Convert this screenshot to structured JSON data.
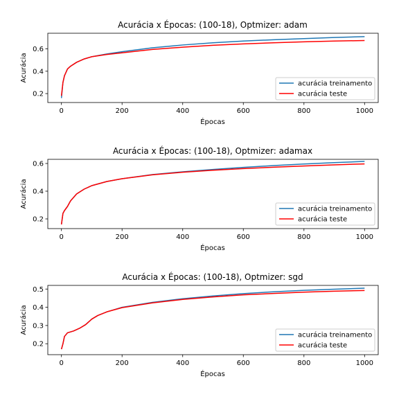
{
  "chart_data": [
    {
      "type": "line",
      "title": "Acurácia x Épocas: (100-18), Optmizer: adam",
      "xlabel": "Épocas",
      "ylabel": "Acurácia",
      "xlim": [
        -45,
        1045
      ],
      "ylim": [
        0.12,
        0.74
      ],
      "xticks": [
        0,
        200,
        400,
        600,
        800,
        1000
      ],
      "yticks": [
        0.2,
        0.4,
        0.6
      ],
      "ytick_labels": [
        "0.2",
        "0.4",
        "0.6"
      ],
      "legend": "lower-right",
      "x": [
        0,
        5,
        10,
        20,
        30,
        50,
        75,
        100,
        150,
        200,
        300,
        400,
        500,
        600,
        700,
        800,
        900,
        1000
      ],
      "series": [
        {
          "name": "acurácia treinamento",
          "color": "#1f77b4",
          "values": [
            0.16,
            0.3,
            0.36,
            0.42,
            0.445,
            0.48,
            0.51,
            0.53,
            0.555,
            0.575,
            0.61,
            0.635,
            0.655,
            0.67,
            0.682,
            0.692,
            0.702,
            0.71
          ]
        },
        {
          "name": "acurácia teste",
          "color": "#ff0000",
          "values": [
            0.18,
            0.3,
            0.36,
            0.42,
            0.445,
            0.48,
            0.51,
            0.53,
            0.55,
            0.565,
            0.595,
            0.615,
            0.632,
            0.645,
            0.655,
            0.663,
            0.67,
            0.675
          ]
        }
      ]
    },
    {
      "type": "line",
      "title": "Acurácia x Épocas: (100-18), Optmizer: adamax",
      "xlabel": "Épocas",
      "ylabel": "Acurácia",
      "xlim": [
        -45,
        1045
      ],
      "ylim": [
        0.13,
        0.63
      ],
      "xticks": [
        0,
        200,
        400,
        600,
        800,
        1000
      ],
      "yticks": [
        0.2,
        0.4,
        0.6
      ],
      "ytick_labels": [
        "0.2",
        "0.4",
        "0.6"
      ],
      "legend": "lower-right",
      "x": [
        0,
        5,
        10,
        20,
        30,
        50,
        75,
        100,
        150,
        200,
        300,
        400,
        500,
        600,
        700,
        800,
        900,
        1000
      ],
      "series": [
        {
          "name": "acurácia treinamento",
          "color": "#1f77b4",
          "values": [
            0.16,
            0.24,
            0.26,
            0.29,
            0.33,
            0.38,
            0.415,
            0.44,
            0.47,
            0.49,
            0.52,
            0.54,
            0.557,
            0.572,
            0.585,
            0.596,
            0.606,
            0.615
          ]
        },
        {
          "name": "acurácia teste",
          "color": "#ff0000",
          "values": [
            0.16,
            0.24,
            0.26,
            0.29,
            0.33,
            0.38,
            0.415,
            0.44,
            0.47,
            0.49,
            0.518,
            0.537,
            0.551,
            0.563,
            0.573,
            0.582,
            0.59,
            0.597
          ]
        }
      ]
    },
    {
      "type": "line",
      "title": "Acurácia x Épocas: (100-18), Optmizer: sgd",
      "xlabel": "Épocas",
      "ylabel": "Acurácia",
      "xlim": [
        -45,
        1045
      ],
      "ylim": [
        0.14,
        0.52
      ],
      "xticks": [
        0,
        200,
        400,
        600,
        800,
        1000
      ],
      "yticks": [
        0.2,
        0.3,
        0.4,
        0.5
      ],
      "ytick_labels": [
        "0.2",
        "0.3",
        "0.4",
        "0.5"
      ],
      "legend": "lower-right",
      "x": [
        0,
        5,
        10,
        20,
        40,
        60,
        80,
        100,
        120,
        150,
        200,
        300,
        400,
        500,
        600,
        700,
        800,
        900,
        1000
      ],
      "series": [
        {
          "name": "acurácia treinamento",
          "color": "#1f77b4",
          "values": [
            0.17,
            0.2,
            0.24,
            0.26,
            0.27,
            0.285,
            0.305,
            0.335,
            0.355,
            0.375,
            0.4,
            0.427,
            0.447,
            0.462,
            0.475,
            0.485,
            0.493,
            0.499,
            0.505
          ]
        },
        {
          "name": "acurácia teste",
          "color": "#ff0000",
          "values": [
            0.17,
            0.2,
            0.24,
            0.26,
            0.27,
            0.285,
            0.305,
            0.335,
            0.355,
            0.375,
            0.398,
            0.424,
            0.443,
            0.457,
            0.468,
            0.476,
            0.483,
            0.488,
            0.492
          ]
        }
      ]
    }
  ]
}
